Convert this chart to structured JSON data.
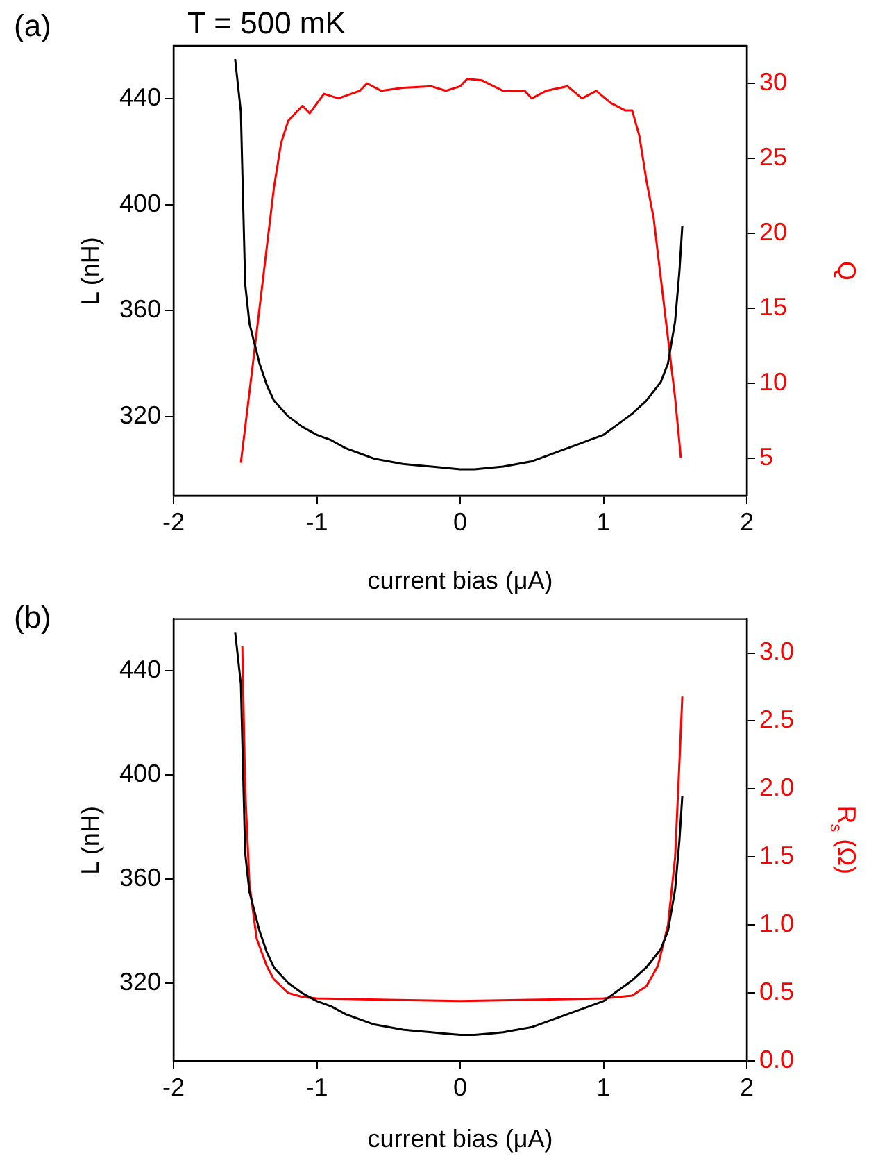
{
  "chart_data": [
    {
      "type": "line",
      "title": "T = 500 mK",
      "annotations": [
        "(a)"
      ],
      "xlabel": "current bias (μA)",
      "ylabel": "L (nH)",
      "y2label": "Q",
      "marker": "none",
      "line_style": "solid",
      "grid": false,
      "xlim": [
        -2,
        2
      ],
      "xticks": [
        -2,
        -1,
        0,
        1,
        2
      ],
      "ylim": [
        290,
        460
      ],
      "yticks": [
        320,
        360,
        400,
        440
      ],
      "y2lim": [
        2.5,
        32.5
      ],
      "y2ticks": [
        5,
        10,
        15,
        20,
        25,
        30
      ],
      "series": [
        {
          "color": "#000000",
          "x": [
            -1.57,
            -1.53,
            -1.5,
            -1.47,
            -1.4,
            -1.35,
            -1.3,
            -1.2,
            -1.1,
            -1,
            -0.9,
            -0.8,
            -0.7,
            -0.6,
            -0.5,
            -0.4,
            -0.3,
            -0.2,
            -0.1,
            0,
            0.1,
            0.2,
            0.3,
            0.4,
            0.5,
            0.6,
            0.7,
            0.8,
            0.9,
            1,
            1.1,
            1.2,
            1.3,
            1.4,
            1.45,
            1.5,
            1.53,
            1.55
          ],
          "values": [
            455,
            435,
            370,
            355,
            340,
            332,
            326,
            320,
            316,
            313,
            311,
            308,
            306,
            304,
            303,
            302,
            301.5,
            301,
            300.5,
            300,
            300,
            300.5,
            301,
            302,
            303,
            305,
            307,
            309,
            311,
            313,
            317,
            321,
            326,
            333,
            340,
            356,
            375,
            392
          ]
        },
        {
          "color": "#ff0000",
          "axis": "y2",
          "x": [
            -1.53,
            -1.45,
            -1.4,
            -1.35,
            -1.3,
            -1.25,
            -1.2,
            -1.1,
            -1.05,
            -0.95,
            -0.85,
            -0.7,
            -0.65,
            -0.55,
            -0.4,
            -0.2,
            -0.1,
            0,
            0.05,
            0.15,
            0.3,
            0.45,
            0.5,
            0.6,
            0.75,
            0.85,
            0.95,
            1.05,
            1.15,
            1.2,
            1.25,
            1.3,
            1.35,
            1.4,
            1.45,
            1.5,
            1.54
          ],
          "values": [
            4.7,
            11,
            15,
            19,
            23,
            26,
            27.5,
            28.5,
            28,
            29.3,
            29,
            29.5,
            30,
            29.5,
            29.7,
            29.8,
            29.5,
            29.8,
            30.3,
            30.2,
            29.5,
            29.5,
            29,
            29.5,
            29.8,
            29,
            29.5,
            28.7,
            28.2,
            28.2,
            26.5,
            23.5,
            21,
            17,
            13,
            9,
            5
          ]
        }
      ]
    },
    {
      "type": "line",
      "annotations": [
        "(b)"
      ],
      "xlabel": "current bias (μA)",
      "ylabel": "L (nH)",
      "y2label": "R$_{s}$ (Ω)",
      "marker": "none",
      "line_style": "solid",
      "grid": false,
      "xlim": [
        -2,
        2
      ],
      "xticks": [
        -2,
        -1,
        0,
        1,
        2
      ],
      "ylim": [
        290,
        460
      ],
      "yticks": [
        320,
        360,
        400,
        440
      ],
      "y2lim": [
        0,
        3.25
      ],
      "y2ticks": [
        {
          "value": 0,
          "label": "0.0"
        },
        0.5,
        {
          "value": 1,
          "label": "1.0"
        },
        1.5,
        {
          "value": 2,
          "label": "2.0"
        },
        2.5,
        {
          "value": 3,
          "label": "3.0"
        }
      ],
      "series": [
        {
          "color": "#000000",
          "x": [
            -1.57,
            -1.53,
            -1.5,
            -1.47,
            -1.4,
            -1.35,
            -1.3,
            -1.2,
            -1.1,
            -1,
            -0.9,
            -0.8,
            -0.7,
            -0.6,
            -0.5,
            -0.4,
            -0.3,
            -0.2,
            -0.1,
            0,
            0.1,
            0.2,
            0.3,
            0.4,
            0.5,
            0.6,
            0.7,
            0.8,
            0.9,
            1,
            1.1,
            1.2,
            1.3,
            1.4,
            1.45,
            1.5,
            1.53,
            1.55
          ],
          "values": [
            455,
            435,
            370,
            355,
            340,
            332,
            326,
            320,
            316,
            313,
            311,
            308,
            306,
            304,
            303,
            302,
            301.5,
            301,
            300.5,
            300,
            300,
            300.5,
            301,
            302,
            303,
            305,
            307,
            309,
            311,
            313,
            317,
            321,
            326,
            333,
            340,
            356,
            375,
            392
          ]
        },
        {
          "color": "#ff0000",
          "axis": "y2",
          "x": [
            -1.52,
            -1.5,
            -1.47,
            -1.42,
            -1.35,
            -1.3,
            -1.2,
            -1.1,
            -1,
            -0.5,
            0,
            0.5,
            1,
            1.2,
            1.3,
            1.38,
            1.45,
            1.5,
            1.53,
            1.55
          ],
          "values": [
            3.05,
            2.0,
            1.3,
            0.9,
            0.7,
            0.6,
            0.5,
            0.47,
            0.46,
            0.45,
            0.44,
            0.45,
            0.46,
            0.48,
            0.55,
            0.7,
            1.0,
            1.5,
            2.2,
            2.68
          ]
        }
      ]
    }
  ]
}
